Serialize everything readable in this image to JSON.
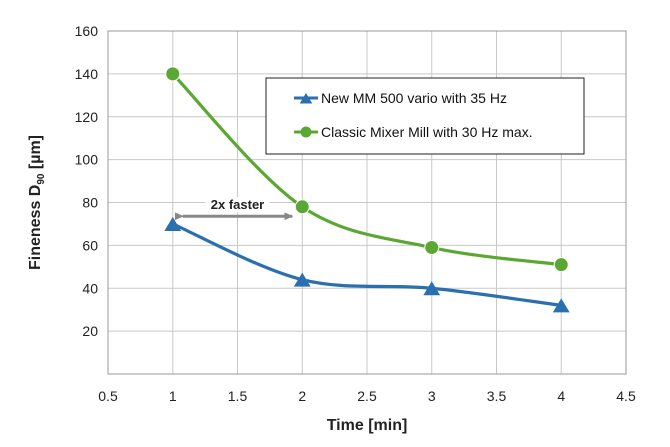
{
  "chart_data": {
    "type": "line",
    "title": "",
    "xlabel": "Time [min]",
    "ylabel_main": "Fineness D",
    "ylabel_sub": "90",
    "ylabel_unit": " [µm]",
    "xlim": [
      0.5,
      4.5
    ],
    "ylim": [
      0,
      160
    ],
    "x_ticks": [
      0.5,
      1,
      1.5,
      2,
      2.5,
      3,
      3.5,
      4,
      4.5
    ],
    "x_tick_labels": [
      "0.5",
      "1",
      "1.5",
      "2",
      "2.5",
      "3",
      "3.5",
      "4",
      "4.5"
    ],
    "y_ticks": [
      20,
      40,
      60,
      80,
      100,
      120,
      140,
      160
    ],
    "y_tick_labels": [
      "20",
      "40",
      "60",
      "80",
      "100",
      "120",
      "140",
      "160"
    ],
    "grid": true,
    "legend_position": "top-right",
    "series": [
      {
        "name": "New MM 500 vario with 35 Hz",
        "x": [
          1,
          2,
          3,
          4
        ],
        "values": [
          70,
          44,
          40,
          32
        ],
        "color": "#2a6fb0",
        "marker": "triangle"
      },
      {
        "name": "Classic Mixer Mill with 30 Hz max.",
        "x": [
          1,
          2,
          3,
          4
        ],
        "values": [
          140,
          78,
          59,
          51
        ],
        "color": "#5aa832",
        "marker": "circle"
      }
    ],
    "annotation": {
      "text": "2x faster",
      "from_x": 1,
      "to_x": 2,
      "y": 75
    }
  }
}
